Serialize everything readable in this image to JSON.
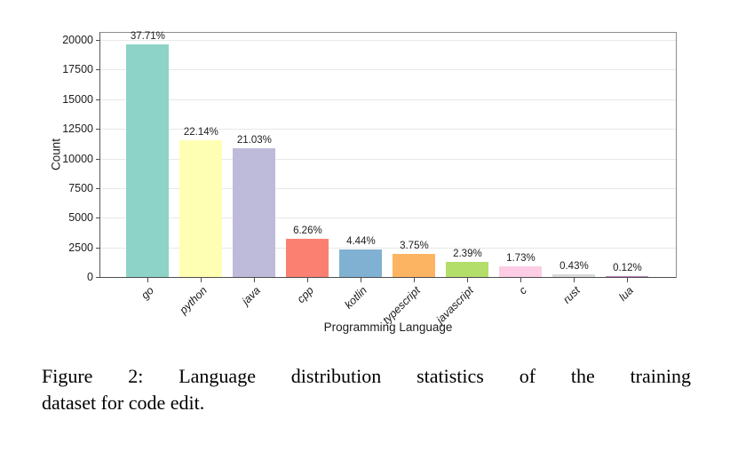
{
  "page": {
    "background": "#ffffff"
  },
  "chart_data": {
    "type": "bar",
    "title": "",
    "xlabel": "Programming Language",
    "ylabel": "Count",
    "categories": [
      "go",
      "python",
      "java",
      "cpp",
      "kotlin",
      "typescript",
      "javascript",
      "c",
      "rust",
      "lua"
    ],
    "values": [
      19600,
      11500,
      10900,
      3250,
      2300,
      1950,
      1240,
      900,
      220,
      60
    ],
    "percentages": [
      37.71,
      22.14,
      21.03,
      6.26,
      4.44,
      3.75,
      2.39,
      1.73,
      0.43,
      0.12
    ],
    "bar_labels": [
      "37.71%",
      "22.14%",
      "21.03%",
      "6.26%",
      "4.44%",
      "3.75%",
      "2.39%",
      "1.73%",
      "0.43%",
      "0.12%"
    ],
    "colors": [
      "#8dd3c7",
      "#ffffb3",
      "#bebada",
      "#fb8072",
      "#80b1d3",
      "#fdb462",
      "#b3de69",
      "#fccde5",
      "#d9d9d9",
      "#bc80bd"
    ],
    "ylim": [
      0,
      20600
    ],
    "yticks": [
      0,
      2500,
      5000,
      7500,
      10000,
      12500,
      15000,
      17500,
      20000
    ],
    "grid": "horizontal",
    "legend": "none",
    "xtick_style": "italic, rotated 45deg"
  },
  "figure": {
    "caption": {
      "line1": "Figure 2: Language distribution statistics of the training",
      "line2": "dataset for code edit.",
      "full_text": "Figure 2: Language distribution statistics of the training dataset for code edit."
    }
  }
}
